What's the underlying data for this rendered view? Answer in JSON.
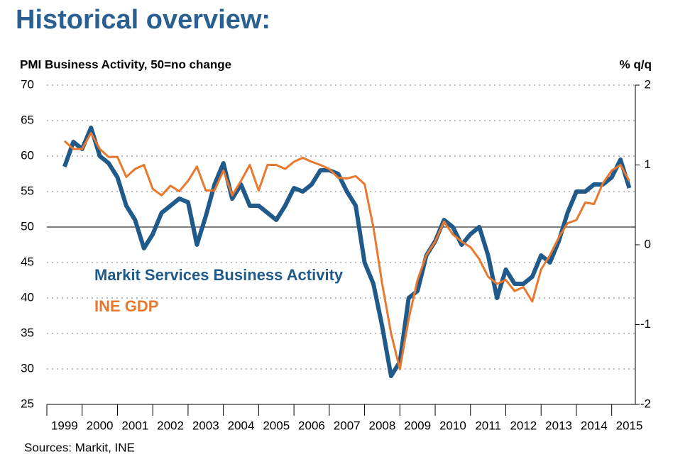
{
  "page_title": "Historical overview:",
  "chart_data": {
    "type": "line",
    "y_label": "PMI Business Activity, 50=no change",
    "y2_label": "% q/q",
    "source": "Sources: Markit, INE",
    "x": [
      1999.5,
      1999.75,
      2000,
      2000.25,
      2000.5,
      2000.75,
      2001,
      2001.25,
      2001.5,
      2001.75,
      2002,
      2002.25,
      2002.5,
      2002.75,
      2003,
      2003.25,
      2003.5,
      2003.75,
      2004,
      2004.25,
      2004.5,
      2004.75,
      2005,
      2005.25,
      2005.5,
      2005.75,
      2006,
      2006.25,
      2006.5,
      2006.75,
      2007,
      2007.25,
      2007.5,
      2007.75,
      2008,
      2008.25,
      2008.5,
      2008.75,
      2009,
      2009.25,
      2009.5,
      2009.75,
      2010,
      2010.25,
      2010.5,
      2010.75,
      2011,
      2011.25,
      2011.5,
      2011.75,
      2012,
      2012.25,
      2012.5,
      2012.75,
      2013,
      2013.25,
      2013.5,
      2013.75,
      2014,
      2014.25,
      2014.5,
      2014.75,
      2015,
      2015.25,
      2015.5
    ],
    "xlim": [
      1999,
      2015.67
    ],
    "xticks": [
      1999,
      2000,
      2001,
      2002,
      2003,
      2004,
      2005,
      2006,
      2007,
      2008,
      2009,
      2010,
      2011,
      2012,
      2013,
      2014,
      2015
    ],
    "ylim": [
      25,
      70
    ],
    "yticks": [
      25,
      30,
      35,
      40,
      45,
      50,
      55,
      60,
      65,
      70
    ],
    "y2lim": [
      -2,
      2
    ],
    "y2ticks": [
      -2,
      -1,
      0,
      1,
      2
    ],
    "grid": true,
    "reference_line": 50,
    "series": [
      {
        "name": "Markit Services Business Activity",
        "color": "#1f5a8a",
        "values": [
          58.5,
          62,
          61,
          64,
          60,
          59,
          57,
          53,
          51,
          47,
          49,
          52,
          53,
          54,
          53.5,
          47.5,
          51.5,
          56,
          59,
          54,
          56,
          53,
          53,
          52,
          51,
          53,
          55.5,
          55,
          56,
          58,
          58,
          57.5,
          55,
          53,
          45,
          42,
          36,
          29,
          31,
          40,
          41,
          46,
          48,
          51,
          50,
          47.5,
          49,
          50,
          46,
          40,
          44,
          42,
          42,
          43,
          46,
          45,
          48,
          52,
          55,
          55,
          56,
          56,
          57,
          59.5,
          55.5
        ]
      },
      {
        "name": "INE GDP",
        "color": "#e8782e",
        "axis": "y2",
        "values": [
          1.3,
          1.2,
          1.2,
          1.4,
          1.2,
          1.1,
          1.1,
          0.85,
          0.95,
          1.0,
          0.7,
          0.62,
          0.74,
          0.67,
          0.8,
          0.98,
          0.68,
          0.68,
          0.93,
          0.62,
          0.8,
          1.0,
          0.68,
          1.0,
          1.0,
          0.95,
          1.04,
          1.09,
          1.04,
          1.0,
          0.95,
          0.84,
          0.83,
          0.86,
          0.76,
          0.22,
          -0.49,
          -1.11,
          -1.56,
          -0.93,
          -0.44,
          -0.13,
          0.04,
          0.29,
          0.13,
          0.04,
          -0.03,
          -0.18,
          -0.4,
          -0.49,
          -0.44,
          -0.58,
          -0.53,
          -0.71,
          -0.31,
          -0.13,
          0.09,
          0.27,
          0.31,
          0.53,
          0.51,
          0.77,
          0.93,
          1.0,
          0.8
        ]
      }
    ]
  }
}
